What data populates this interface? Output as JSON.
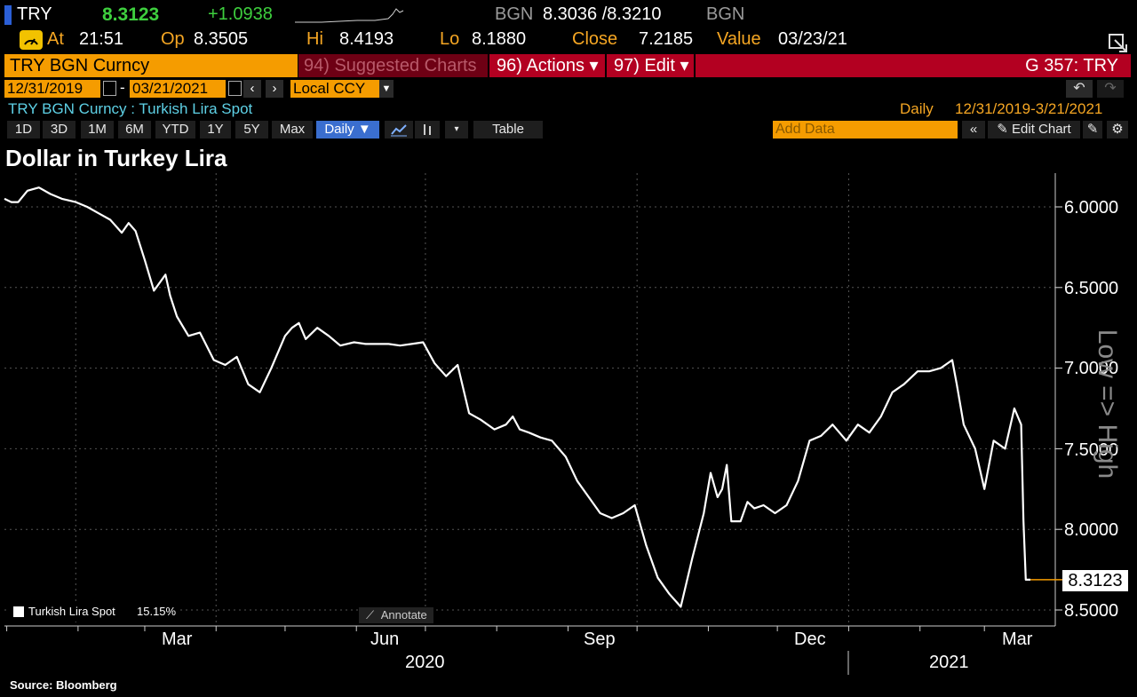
{
  "quote": {
    "ticker": "TRY",
    "last": "8.3123",
    "change": "+1.0938",
    "bid_label": "BGN",
    "bid_ask": "8.3036 /8.3210",
    "ask_label": "BGN",
    "at_label": "At",
    "at_time": "21:51",
    "op_label": "Op",
    "op_value": "8.3505",
    "hi_label": "Hi",
    "hi_value": "8.4193",
    "lo_label": "Lo",
    "lo_value": "8.1880",
    "close_label": "Close",
    "close_value": "7.2185",
    "value_label": "Value",
    "value_date": "03/23/21"
  },
  "command_bar": {
    "security": "TRY BGN Curncy",
    "suggested": "94) Suggested Charts",
    "actions": "96) Actions ▾",
    "edit": "97) Edit ▾",
    "page": "G 357: TRY"
  },
  "range_bar": {
    "start_date": "12/31/2019",
    "dash": "-",
    "end_date": "03/21/2021",
    "currency": "Local CCY"
  },
  "info_bar": {
    "description": "TRY BGN Curncy : Turkish Lira Spot",
    "frequency": "Daily",
    "date_range": "12/31/2019-3/21/2021"
  },
  "toolbar": {
    "periods": [
      "1D",
      "3D",
      "1M",
      "6M",
      "YTD",
      "1Y",
      "5Y",
      "Max"
    ],
    "frequency": "Daily ▼",
    "table_label": "Table",
    "add_data_placeholder": "Add Data",
    "edit_chart": "Edit Chart"
  },
  "icons": {
    "gauge": "gauge-icon",
    "export": "export-icon",
    "calendar": "calendar-icon",
    "undo": "undo-icon",
    "redo": "redo-icon",
    "line_chart": "line-chart-icon",
    "bar_chart": "bar-chart-icon",
    "settings": "gear-icon"
  },
  "colors": {
    "accent_orange": "#f5a623",
    "command_red": "#b30021",
    "positive_green": "#3ecf3e",
    "selected_blue": "#3a6ecf"
  },
  "chart_data": {
    "type": "line",
    "title": "Dollar in Turkey Lira",
    "ylabel": "Low => High",
    "y_inverted": true,
    "ylim": [
      8.6,
      5.85
    ],
    "y_ticks": [
      "6.0000",
      "6.5000",
      "7.0000",
      "7.5000",
      "8.0000",
      "8.5000"
    ],
    "x_tick_labels": [
      "Mar",
      "Jun",
      "Sep",
      "Dec",
      "Mar"
    ],
    "x_year_labels": [
      "2020",
      "2021"
    ],
    "last_value_label": "8.3123",
    "legend": {
      "name": "Turkish Lira Spot",
      "value": "15.15%"
    },
    "annotate_label": "Annotate",
    "grid": true,
    "series": [
      {
        "name": "Turkish Lira Spot",
        "color": "#ffffff",
        "x": [
          "2019-12-31",
          "2020-01-03",
          "2020-01-06",
          "2020-01-10",
          "2020-01-15",
          "2020-01-20",
          "2020-01-25",
          "2020-01-31",
          "2020-02-05",
          "2020-02-10",
          "2020-02-15",
          "2020-02-20",
          "2020-02-23",
          "2020-02-26",
          "2020-03-01",
          "2020-03-05",
          "2020-03-10",
          "2020-03-12",
          "2020-03-15",
          "2020-03-20",
          "2020-03-25",
          "2020-03-31",
          "2020-04-05",
          "2020-04-10",
          "2020-04-15",
          "2020-04-20",
          "2020-04-25",
          "2020-05-01",
          "2020-05-04",
          "2020-05-07",
          "2020-05-10",
          "2020-05-15",
          "2020-05-20",
          "2020-05-25",
          "2020-05-31",
          "2020-06-05",
          "2020-06-10",
          "2020-06-15",
          "2020-06-20",
          "2020-06-25",
          "2020-06-30",
          "2020-07-05",
          "2020-07-10",
          "2020-07-15",
          "2020-07-20",
          "2020-07-25",
          "2020-07-31",
          "2020-08-05",
          "2020-08-08",
          "2020-08-11",
          "2020-08-15",
          "2020-08-20",
          "2020-08-25",
          "2020-08-31",
          "2020-09-05",
          "2020-09-10",
          "2020-09-15",
          "2020-09-20",
          "2020-09-25",
          "2020-09-30",
          "2020-10-05",
          "2020-10-10",
          "2020-10-15",
          "2020-10-20",
          "2020-10-25",
          "2020-10-30",
          "2020-11-02",
          "2020-11-05",
          "2020-11-07",
          "2020-11-09",
          "2020-11-11",
          "2020-11-15",
          "2020-11-18",
          "2020-11-21",
          "2020-11-25",
          "2020-11-30",
          "2020-12-05",
          "2020-12-10",
          "2020-12-15",
          "2020-12-20",
          "2020-12-25",
          "2020-12-31",
          "2021-01-05",
          "2021-01-10",
          "2021-01-15",
          "2021-01-20",
          "2021-01-25",
          "2021-01-31",
          "2021-02-05",
          "2021-02-10",
          "2021-02-15",
          "2021-02-17",
          "2021-02-20",
          "2021-02-25",
          "2021-03-01",
          "2021-03-05",
          "2021-03-10",
          "2021-03-14",
          "2021-03-17",
          "2021-03-18",
          "2021-03-19",
          "2021-03-20",
          "2021-03-21"
        ],
        "y": [
          5.95,
          5.97,
          5.97,
          5.9,
          5.88,
          5.92,
          5.95,
          5.97,
          6.0,
          6.04,
          6.08,
          6.16,
          6.1,
          6.15,
          6.33,
          6.52,
          6.42,
          6.55,
          6.68,
          6.8,
          6.78,
          6.95,
          6.98,
          6.93,
          7.1,
          7.15,
          7.0,
          6.8,
          6.75,
          6.72,
          6.82,
          6.75,
          6.8,
          6.86,
          6.84,
          6.85,
          6.85,
          6.85,
          6.86,
          6.85,
          6.84,
          6.97,
          7.05,
          6.98,
          7.28,
          7.32,
          7.38,
          7.35,
          7.3,
          7.38,
          7.4,
          7.43,
          7.45,
          7.55,
          7.7,
          7.8,
          7.9,
          7.93,
          7.9,
          7.85,
          8.1,
          8.3,
          8.4,
          8.48,
          8.18,
          7.9,
          7.65,
          7.8,
          7.75,
          7.6,
          7.95,
          7.95,
          7.83,
          7.87,
          7.85,
          7.9,
          7.85,
          7.7,
          7.45,
          7.42,
          7.35,
          7.45,
          7.35,
          7.4,
          7.3,
          7.15,
          7.1,
          7.02,
          7.02,
          7.0,
          6.95,
          7.1,
          7.35,
          7.5,
          7.75,
          7.45,
          7.5,
          7.25,
          7.35,
          7.95,
          8.3123,
          8.3123,
          8.3123
        ]
      }
    ]
  }
}
